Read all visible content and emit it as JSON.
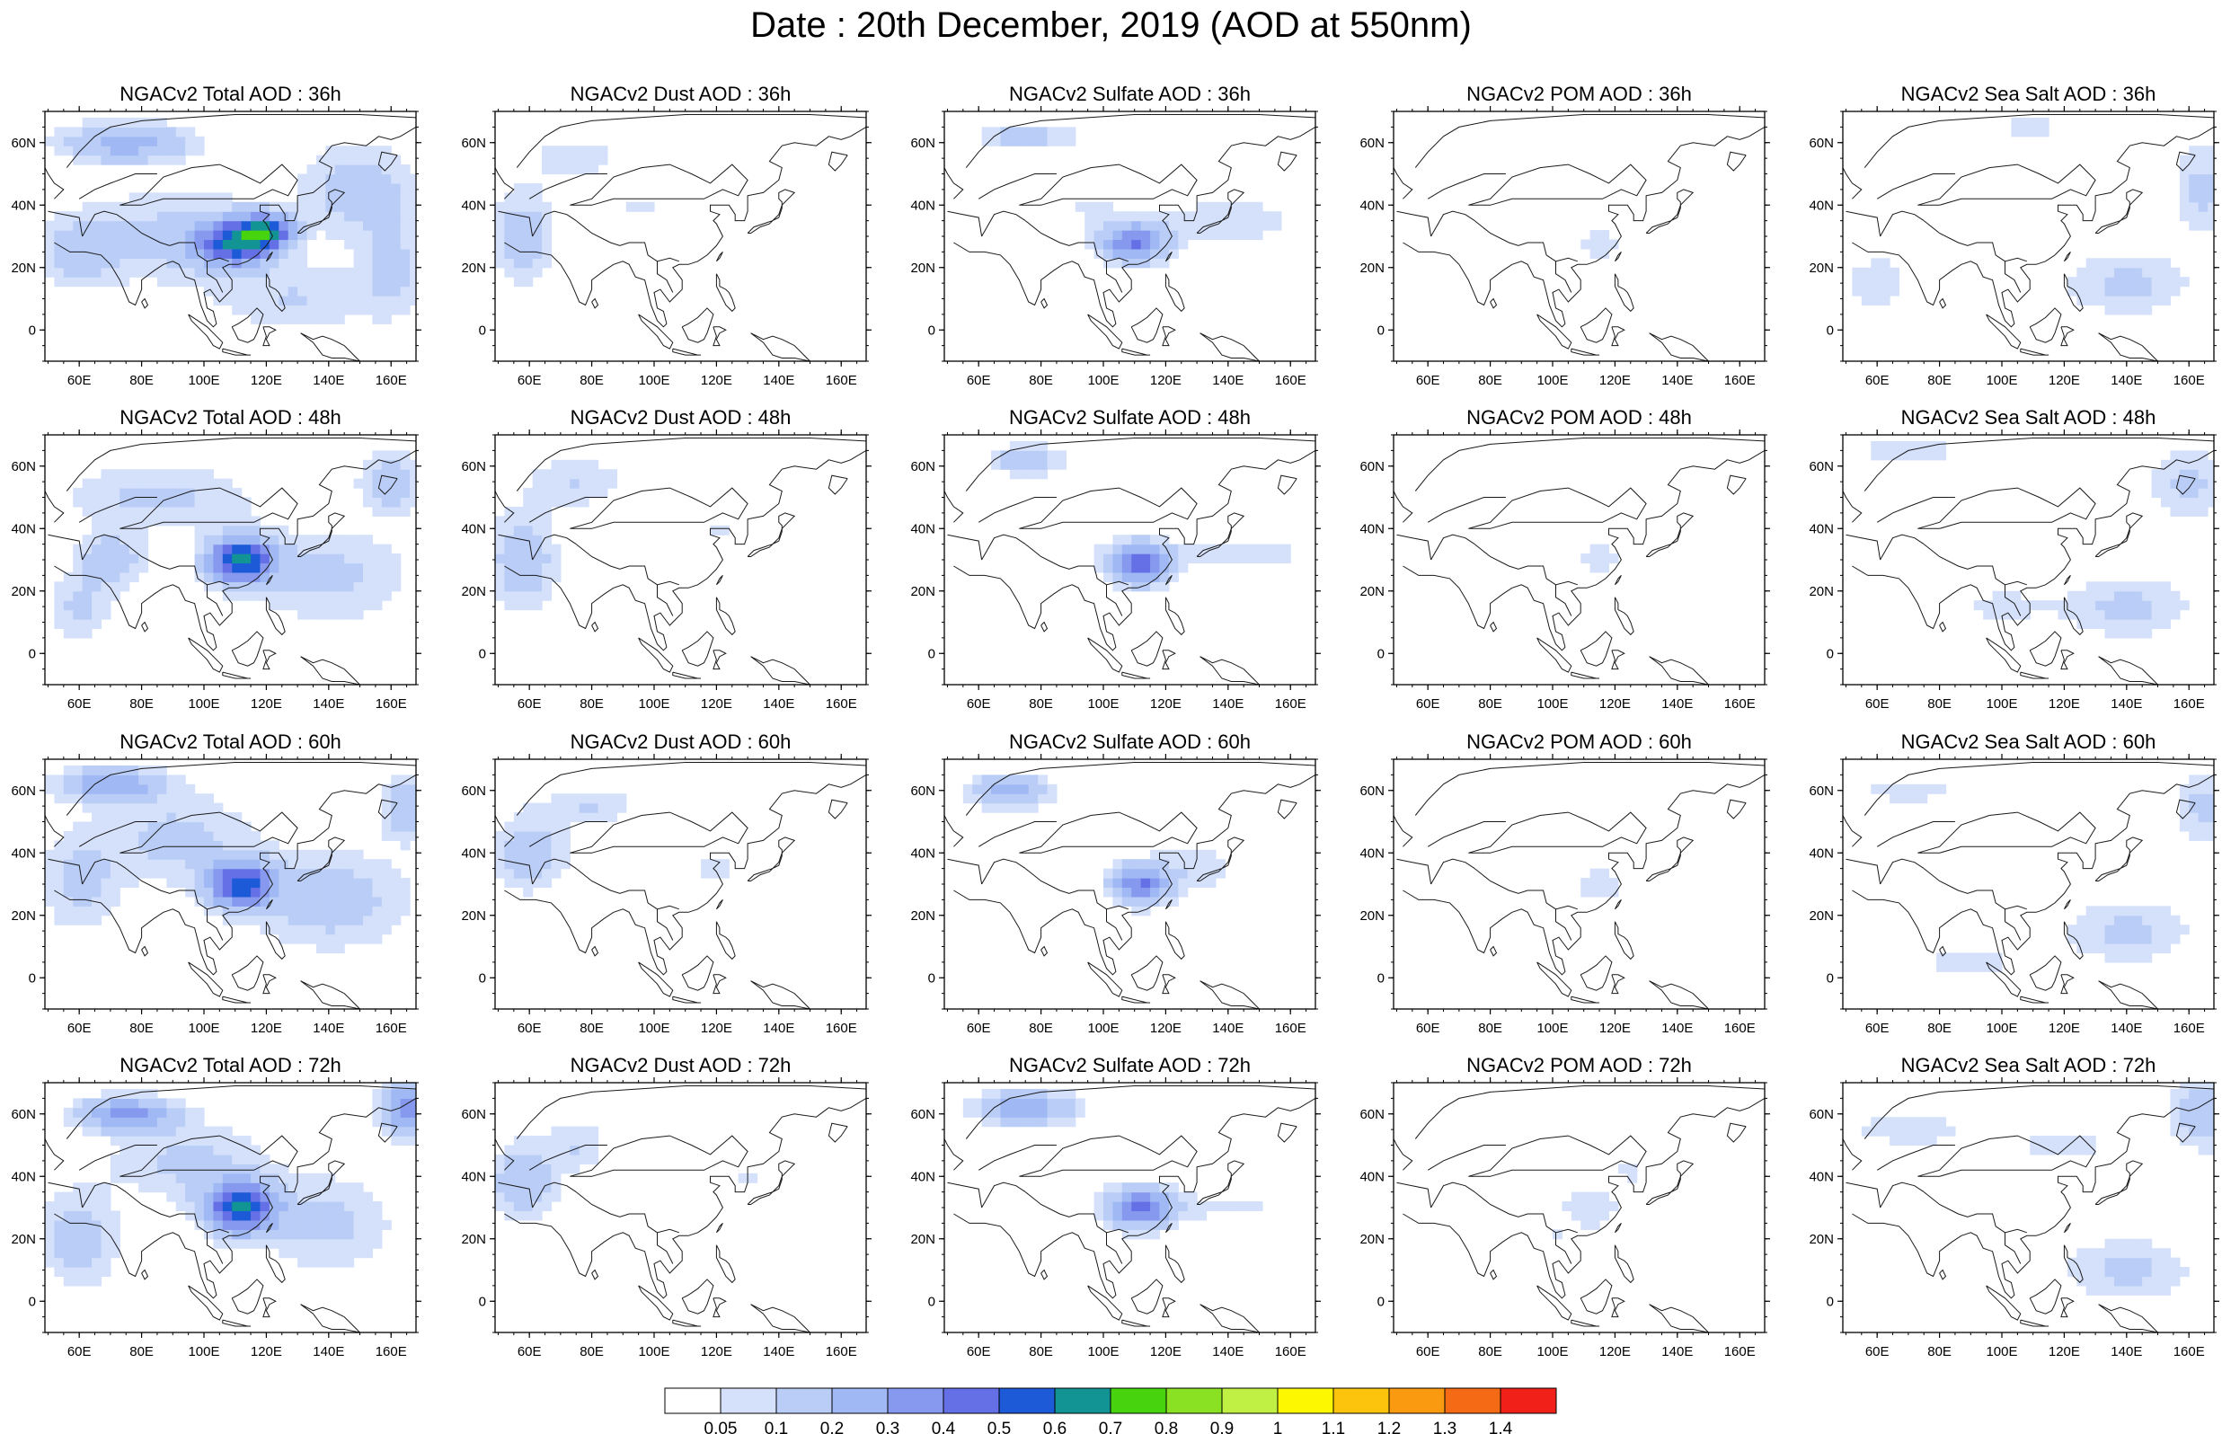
{
  "title": "Date : 20th December, 2019 (AOD at 550nm)",
  "rows": [
    {
      "hour": "36h",
      "titles": [
        "NGACv2 Total AOD : 36h",
        "NGACv2 Dust AOD : 36h",
        "NGACv2 Sulfate AOD : 36h",
        "NGACv2 POM AOD : 36h",
        "NGACv2 Sea Salt AOD : 36h"
      ]
    },
    {
      "hour": "48h",
      "titles": [
        "NGACv2 Total AOD : 48h",
        "NGACv2 Dust AOD : 48h",
        "NGACv2 Sulfate AOD : 48h",
        "NGACv2 POM AOD : 48h",
        "NGACv2 Sea Salt AOD : 48h"
      ]
    },
    {
      "hour": "60h",
      "titles": [
        "NGACv2 Total AOD : 60h",
        "NGACv2 Dust AOD : 60h",
        "NGACv2 Sulfate AOD : 60h",
        "NGACv2 POM AOD : 60h",
        "NGACv2 Sea Salt AOD : 60h"
      ]
    },
    {
      "hour": "72h",
      "titles": [
        "NGACv2 Total AOD : 72h",
        "NGACv2 Dust AOD : 72h",
        "NGACv2 Sulfate AOD : 72h",
        "NGACv2 POM AOD : 72h",
        "NGACv2 Sea Salt  AOD : 72h"
      ]
    }
  ],
  "axes": {
    "lon_ticks": [
      "60E",
      "80E",
      "100E",
      "120E",
      "140E",
      "160E"
    ],
    "lon_values": [
      60,
      80,
      100,
      120,
      140,
      160
    ],
    "lat_ticks": [
      "60N",
      "40N",
      "20N",
      "0"
    ],
    "lat_values": [
      60,
      40,
      20,
      0
    ],
    "lon_range": [
      49,
      168
    ],
    "lat_range": [
      -10,
      70
    ]
  },
  "colorbar": {
    "labels": [
      "0.05",
      "0.1",
      "0.2",
      "0.3",
      "0.4",
      "0.5",
      "0.6",
      "0.7",
      "0.8",
      "0.9",
      "1",
      "1.1",
      "1.2",
      "1.3",
      "1.4"
    ],
    "colors": [
      "#ffffff",
      "#d5e1fb",
      "#b9cdf7",
      "#a0b9f4",
      "#8798ef",
      "#6670e6",
      "#1d5ad8",
      "#139494",
      "#47d40f",
      "#8ae022",
      "#bff043",
      "#fdf802",
      "#fcc40d",
      "#fa9a10",
      "#f56a15",
      "#f1211a"
    ]
  },
  "species": [
    "total",
    "dust",
    "sulfate",
    "pom",
    "seasalt"
  ],
  "blobs": {
    "total": [
      [
        [
          110,
          28,
          12,
          7,
          0.55
        ],
        [
          120,
          32,
          8,
          5,
          0.5
        ],
        [
          75,
          60,
          20,
          6,
          0.25
        ],
        [
          150,
          45,
          18,
          14,
          0.15
        ],
        [
          90,
          30,
          30,
          15,
          0.12
        ],
        [
          130,
          10,
          25,
          10,
          0.1
        ],
        [
          60,
          25,
          12,
          10,
          0.15
        ],
        [
          160,
          20,
          10,
          15,
          0.12
        ]
      ],
      [
        [
          112,
          30,
          10,
          7,
          0.65
        ],
        [
          85,
          50,
          30,
          10,
          0.12
        ],
        [
          70,
          30,
          10,
          8,
          0.18
        ],
        [
          140,
          25,
          25,
          15,
          0.12
        ],
        [
          60,
          15,
          10,
          10,
          0.12
        ],
        [
          160,
          55,
          10,
          10,
          0.15
        ]
      ],
      [
        [
          112,
          30,
          10,
          7,
          0.55
        ],
        [
          70,
          62,
          15,
          5,
          0.3
        ],
        [
          90,
          45,
          25,
          15,
          0.12
        ],
        [
          140,
          25,
          25,
          15,
          0.15
        ],
        [
          165,
          55,
          8,
          10,
          0.18
        ],
        [
          60,
          30,
          12,
          15,
          0.12
        ]
      ],
      [
        [
          112,
          30,
          11,
          8,
          0.6
        ],
        [
          75,
          60,
          15,
          5,
          0.35
        ],
        [
          165,
          62,
          8,
          8,
          0.35
        ],
        [
          95,
          45,
          25,
          12,
          0.12
        ],
        [
          140,
          25,
          20,
          15,
          0.12
        ],
        [
          60,
          20,
          12,
          15,
          0.15
        ]
      ]
    ],
    "dust": [
      [
        [
          58,
          30,
          10,
          15,
          0.15
        ],
        [
          75,
          55,
          15,
          8,
          0.08
        ],
        [
          95,
          40,
          10,
          5,
          0.06
        ]
      ],
      [
        [
          58,
          30,
          10,
          15,
          0.18
        ],
        [
          75,
          55,
          15,
          8,
          0.1
        ],
        [
          120,
          40,
          8,
          5,
          0.06
        ]
      ],
      [
        [
          60,
          40,
          12,
          12,
          0.15
        ],
        [
          80,
          55,
          15,
          6,
          0.1
        ],
        [
          120,
          35,
          8,
          5,
          0.08
        ]
      ],
      [
        [
          58,
          38,
          10,
          12,
          0.18
        ],
        [
          75,
          50,
          10,
          8,
          0.1
        ],
        [
          130,
          40,
          10,
          5,
          0.06
        ]
      ]
    ],
    "sulfate": [
      [
        [
          110,
          28,
          10,
          6,
          0.4
        ],
        [
          75,
          62,
          15,
          4,
          0.15
        ],
        [
          140,
          35,
          25,
          8,
          0.08
        ],
        [
          95,
          40,
          15,
          10,
          0.05
        ]
      ],
      [
        [
          112,
          29,
          9,
          6,
          0.5
        ],
        [
          75,
          62,
          12,
          5,
          0.15
        ],
        [
          145,
          32,
          25,
          6,
          0.08
        ],
        [
          90,
          35,
          10,
          8,
          0.05
        ]
      ],
      [
        [
          112,
          30,
          9,
          6,
          0.4
        ],
        [
          70,
          60,
          12,
          5,
          0.25
        ],
        [
          130,
          35,
          15,
          8,
          0.08
        ],
        [
          88,
          40,
          10,
          8,
          0.05
        ]
      ],
      [
        [
          112,
          30,
          10,
          6,
          0.45
        ],
        [
          75,
          62,
          15,
          5,
          0.3
        ],
        [
          140,
          30,
          25,
          5,
          0.06
        ],
        [
          90,
          40,
          10,
          8,
          0.05
        ]
      ]
    ],
    "pom": [
      [
        [
          115,
          28,
          8,
          6,
          0.08
        ],
        [
          100,
          18,
          6,
          4,
          0.05
        ]
      ],
      [
        [
          115,
          30,
          8,
          6,
          0.08
        ],
        [
          100,
          20,
          6,
          4,
          0.05
        ]
      ],
      [
        [
          115,
          30,
          10,
          6,
          0.08
        ],
        [
          105,
          20,
          6,
          4,
          0.05
        ]
      ],
      [
        [
          112,
          30,
          10,
          8,
          0.09
        ],
        [
          125,
          42,
          5,
          4,
          0.07
        ],
        [
          100,
          20,
          6,
          4,
          0.05
        ]
      ]
    ],
    "seasalt": [
      [
        [
          140,
          15,
          20,
          10,
          0.12
        ],
        [
          165,
          45,
          10,
          15,
          0.12
        ],
        [
          60,
          15,
          12,
          10,
          0.08
        ],
        [
          110,
          65,
          30,
          4,
          0.06
        ]
      ],
      [
        [
          140,
          15,
          20,
          10,
          0.12
        ],
        [
          160,
          55,
          12,
          12,
          0.12
        ],
        [
          70,
          65,
          20,
          4,
          0.08
        ],
        [
          100,
          15,
          15,
          6,
          0.07
        ]
      ],
      [
        [
          140,
          15,
          20,
          10,
          0.12
        ],
        [
          165,
          55,
          10,
          12,
          0.12
        ],
        [
          70,
          60,
          20,
          4,
          0.08
        ],
        [
          90,
          5,
          20,
          6,
          0.07
        ]
      ],
      [
        [
          140,
          10,
          20,
          10,
          0.12
        ],
        [
          165,
          60,
          10,
          10,
          0.2
        ],
        [
          70,
          55,
          20,
          6,
          0.08
        ],
        [
          120,
          50,
          20,
          6,
          0.07
        ]
      ]
    ]
  }
}
